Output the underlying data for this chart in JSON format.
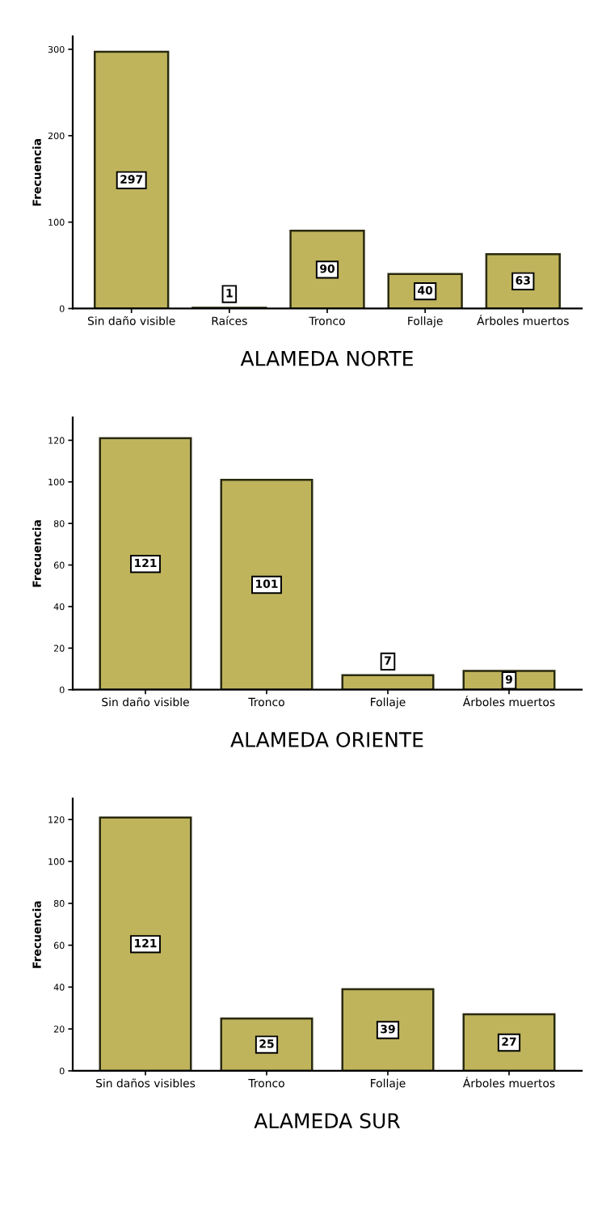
{
  "chart_data": [
    {
      "type": "bar",
      "title": "ALAMEDA NORTE",
      "ylabel": "Frecuencia",
      "categories": [
        "Sin daño visible",
        "Raíces",
        "Tronco",
        "Follaje",
        "Árboles muertos"
      ],
      "values": [
        297,
        1,
        90,
        40,
        63
      ],
      "color": "#bfb45c",
      "ylim": [
        0,
        315
      ],
      "yticks": [
        0,
        100,
        200,
        300
      ],
      "data_labels": true,
      "grid": false
    },
    {
      "type": "bar",
      "title": "ALAMEDA ORIENTE",
      "ylabel": "Frecuencia",
      "categories": [
        "Sin daño visible",
        "Tronco",
        "Follaje",
        "Árboles muertos"
      ],
      "values": [
        121,
        101,
        7,
        9
      ],
      "color": "#bfb45c",
      "ylim": [
        0,
        131
      ],
      "yticks": [
        0,
        20,
        40,
        60,
        80,
        100,
        120
      ],
      "data_labels": true,
      "grid": false
    },
    {
      "type": "bar",
      "title": "ALAMEDA SUR",
      "ylabel": "Frecuencia",
      "categories": [
        "Sin daños visibles",
        "Tronco",
        "Follaje",
        "Árboles muertos"
      ],
      "values": [
        121,
        25,
        39,
        27
      ],
      "color": "#bfb45c",
      "ylim": [
        0,
        130
      ],
      "yticks": [
        0,
        20,
        40,
        60,
        80,
        100,
        120
      ],
      "data_labels": true,
      "grid": false
    }
  ]
}
